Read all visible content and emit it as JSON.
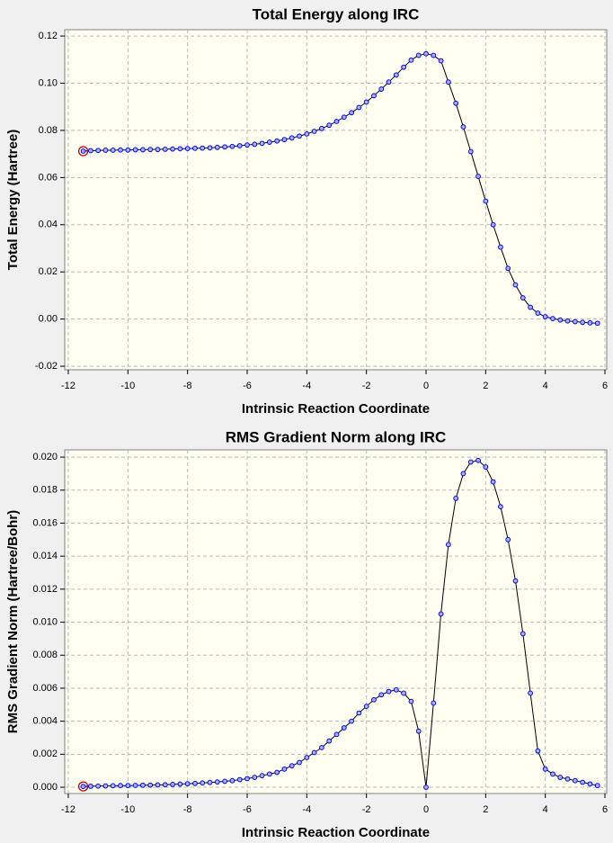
{
  "chart_data": [
    {
      "type": "line",
      "title": "Total Energy along IRC",
      "xlabel": "Intrinsic Reaction Coordinate",
      "ylabel": "Total Energy (Hartree)",
      "x": [
        -11.5,
        -11.25,
        -11,
        -10.75,
        -10.5,
        -10.25,
        -10,
        -9.75,
        -9.5,
        -9.25,
        -9,
        -8.75,
        -8.5,
        -8.25,
        -8,
        -7.75,
        -7.5,
        -7.25,
        -7,
        -6.75,
        -6.5,
        -6.25,
        -6,
        -5.75,
        -5.5,
        -5.25,
        -5,
        -4.75,
        -4.5,
        -4.25,
        -4,
        -3.75,
        -3.5,
        -3.25,
        -3,
        -2.75,
        -2.5,
        -2.25,
        -2,
        -1.75,
        -1.5,
        -1.25,
        -1,
        -0.75,
        -0.5,
        -0.25,
        0,
        0.25,
        0.5,
        0.75,
        1,
        1.25,
        1.5,
        1.75,
        2,
        2.25,
        2.5,
        2.75,
        3,
        3.25,
        3.5,
        3.75,
        4,
        4.25,
        4.5,
        4.75,
        5,
        5.25,
        5.5,
        5.75
      ],
      "values": [
        0.0712,
        0.0714,
        0.0715,
        0.0716,
        0.0716,
        0.0717,
        0.0717,
        0.0718,
        0.0718,
        0.0719,
        0.0719,
        0.072,
        0.0721,
        0.0722,
        0.0723,
        0.0724,
        0.0725,
        0.0726,
        0.0728,
        0.073,
        0.0732,
        0.0735,
        0.0738,
        0.0741,
        0.0745,
        0.075,
        0.0755,
        0.0761,
        0.0768,
        0.0776,
        0.0785,
        0.0796,
        0.0808,
        0.0822,
        0.0838,
        0.0856,
        0.0875,
        0.0897,
        0.092,
        0.0947,
        0.0975,
        0.1005,
        0.1035,
        0.1068,
        0.1098,
        0.1118,
        0.1125,
        0.1118,
        0.1095,
        0.1005,
        0.0915,
        0.0815,
        0.071,
        0.0605,
        0.05,
        0.04,
        0.0305,
        0.0215,
        0.0145,
        0.009,
        0.005,
        0.0025,
        0.001,
        0.0002,
        -0.0004,
        -0.0008,
        -0.0011,
        -0.0014,
        -0.0016,
        -0.0018
      ],
      "line_color": "#000000",
      "marker_color": "#0000ff",
      "xlim": [
        -12.12,
        6.06
      ],
      "xticks": [
        -12,
        -10,
        -8,
        -6,
        -4,
        -2,
        0,
        2,
        4,
        6
      ],
      "ylim": [
        -0.0215,
        0.1227
      ],
      "yticks": [
        -0.02,
        {
          "value": 0,
          "label": "0.00"
        },
        0.02,
        0.04,
        0.06,
        0.08,
        {
          "value": 0.1,
          "label": "0.10"
        },
        0.12
      ],
      "grid": true
    },
    {
      "type": "line",
      "title": "RMS Gradient Norm along IRC",
      "xlabel": "Intrinsic Reaction Coordinate",
      "ylabel": "RMS Gradient Norm (Hartree/Bohr)",
      "x": [
        -11.5,
        -11.25,
        -11,
        -10.75,
        -10.5,
        -10.25,
        -10,
        -9.75,
        -9.5,
        -9.25,
        -9,
        -8.75,
        -8.5,
        -8.25,
        -8,
        -7.75,
        -7.5,
        -7.25,
        -7,
        -6.75,
        -6.5,
        -6.25,
        -6,
        -5.75,
        -5.5,
        -5.25,
        -5,
        -4.75,
        -4.5,
        -4.25,
        -4,
        -3.75,
        -3.5,
        -3.25,
        -3,
        -2.75,
        -2.5,
        -2.25,
        -2,
        -1.75,
        -1.5,
        -1.25,
        -1,
        -0.75,
        -0.5,
        -0.25,
        0,
        0.25,
        0.5,
        0.75,
        1,
        1.25,
        1.5,
        1.75,
        2,
        2.25,
        2.5,
        2.75,
        3,
        3.25,
        3.5,
        3.75,
        4,
        4.25,
        4.5,
        4.75,
        5,
        5.25,
        5.5,
        5.75
      ],
      "values": [
        5e-05,
        6e-05,
        7e-05,
        8e-05,
        9e-05,
        0.0001,
        0.0001,
        0.00011,
        0.00012,
        0.00013,
        0.00014,
        0.00015,
        0.00017,
        0.00019,
        0.00021,
        0.00023,
        0.00026,
        0.00029,
        0.00032,
        0.00036,
        0.0004,
        0.00046,
        0.00052,
        0.0006,
        0.0007,
        0.0008,
        0.0009,
        0.0011,
        0.0013,
        0.0015,
        0.0018,
        0.0021,
        0.0024,
        0.0028,
        0.0032,
        0.0036,
        0.004,
        0.0045,
        0.0049,
        0.0053,
        0.0056,
        0.0058,
        0.0059,
        0.0057,
        0.0052,
        0.0034,
        0,
        0.0051,
        0.0105,
        0.0147,
        0.0175,
        0.019,
        0.0197,
        0.0198,
        0.0194,
        0.0185,
        0.017,
        0.015,
        0.0125,
        0.0093,
        0.0057,
        0.0022,
        0.0011,
        0.0008,
        0.0006,
        0.0005,
        0.0004,
        0.0003,
        0.0002,
        0.0001
      ],
      "line_color": "#000000",
      "marker_color": "#0000ff",
      "xlim": [
        -12.12,
        6.06
      ],
      "xticks": [
        -12,
        -10,
        -8,
        -6,
        -4,
        -2,
        0,
        2,
        4,
        6
      ],
      "ylim": [
        -0.00038,
        0.02044
      ],
      "yticks": [
        {
          "value": 0,
          "label": "0.000"
        },
        0.002,
        0.004,
        0.006,
        0.008,
        {
          "value": 0.01,
          "label": "0.010"
        },
        0.012,
        0.014,
        0.016,
        0.018,
        {
          "value": 0.02,
          "label": "0.020"
        }
      ],
      "grid": true
    }
  ]
}
